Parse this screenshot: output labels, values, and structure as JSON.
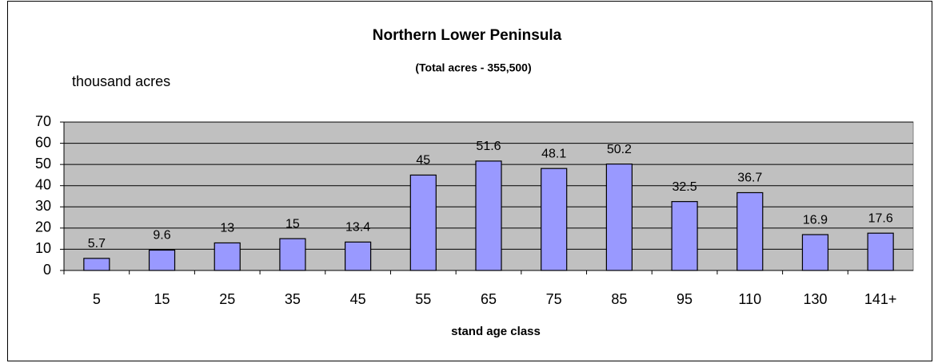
{
  "chart_data": {
    "type": "bar",
    "title": "Northern Lower Peninsula",
    "subtitle": "(Total acres - 355,500)",
    "y_label": "thousand acres",
    "x_label": "stand age class",
    "categories": [
      "5",
      "15",
      "25",
      "35",
      "45",
      "55",
      "65",
      "75",
      "85",
      "95",
      "110",
      "130",
      "141+"
    ],
    "values": [
      5.7,
      9.6,
      13,
      15,
      13.4,
      45,
      51.6,
      48.1,
      50.2,
      32.5,
      36.7,
      16.9,
      17.6
    ],
    "color": "#9999ff",
    "ylim": [
      0,
      70
    ],
    "yticks": [
      0,
      10,
      20,
      30,
      40,
      50,
      60,
      70
    ],
    "grid": true
  }
}
